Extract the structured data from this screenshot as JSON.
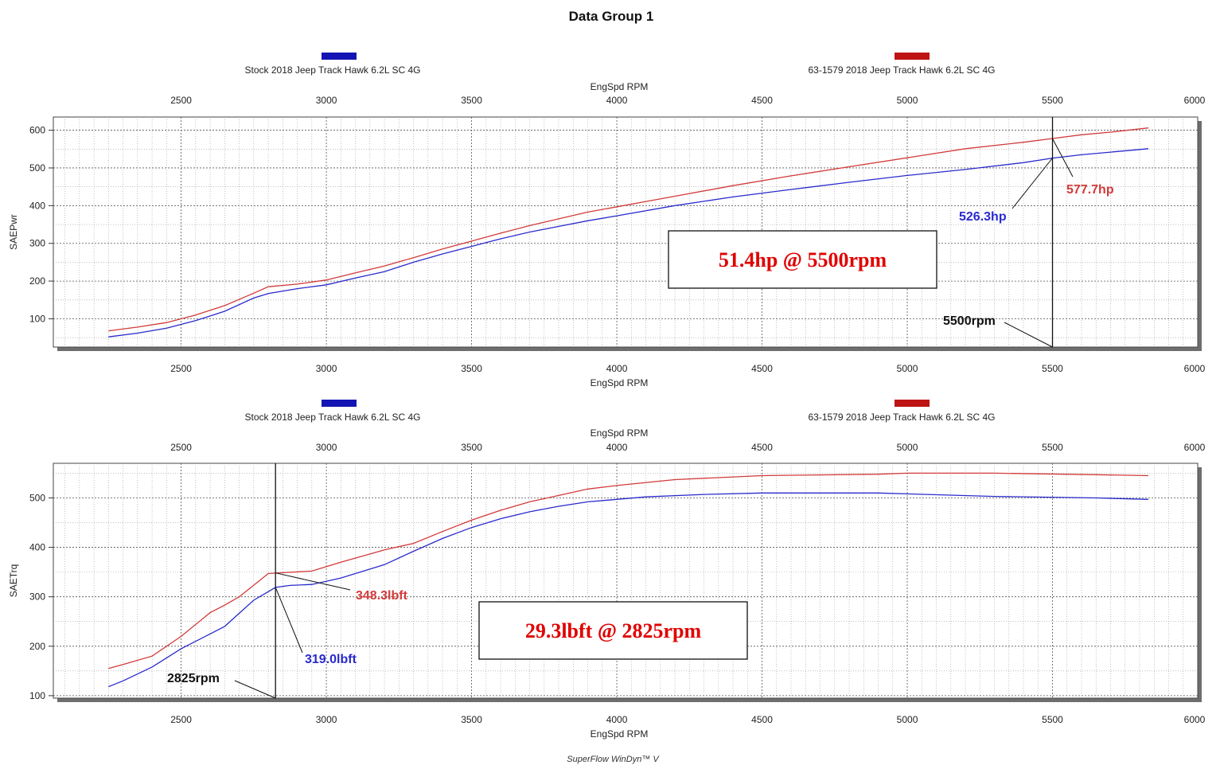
{
  "title": "Data Group 1",
  "footer": "SuperFlow WinDyn™ V",
  "colors": {
    "stock": "#2a2acd",
    "mod": "#d23a3a",
    "legend_stock": "#1414b4",
    "legend_mod": "#be1414",
    "box_text": "#e00000"
  },
  "chart_data": [
    {
      "type": "line",
      "xlabel": "EngSpd RPM",
      "ylabel": "SAEPwr",
      "xticks": [
        2500,
        3000,
        3500,
        4000,
        4500,
        5000,
        5500,
        6000
      ],
      "yticks": [
        100,
        200,
        300,
        400,
        500,
        600
      ],
      "xlim": [
        2060,
        6000
      ],
      "ylim": [
        25,
        635
      ],
      "grid": true,
      "legend": "top",
      "series": [
        {
          "name": "Stock 2018 Jeep Track Hawk 6.2L SC 4G",
          "color": "stock",
          "x": [
            2250,
            2350,
            2450,
            2550,
            2650,
            2750,
            2800,
            2900,
            3000,
            3100,
            3200,
            3300,
            3400,
            3500,
            3600,
            3700,
            3800,
            3900,
            4000,
            4200,
            4400,
            4600,
            4800,
            5000,
            5200,
            5400,
            5500,
            5600,
            5700,
            5830
          ],
          "y": [
            52,
            62,
            75,
            95,
            120,
            155,
            167,
            180,
            190,
            208,
            225,
            250,
            272,
            292,
            312,
            330,
            345,
            360,
            373,
            400,
            423,
            443,
            462,
            480,
            496,
            514,
            526,
            535,
            542,
            551
          ]
        },
        {
          "name": "63-1579 2018 Jeep Track Hawk 6.2L SC 4G",
          "color": "mod",
          "x": [
            2250,
            2350,
            2450,
            2550,
            2650,
            2750,
            2800,
            2900,
            3000,
            3100,
            3200,
            3300,
            3400,
            3500,
            3600,
            3700,
            3800,
            3900,
            4000,
            4200,
            4400,
            4600,
            4800,
            5000,
            5200,
            5400,
            5500,
            5600,
            5700,
            5830
          ],
          "y": [
            68,
            78,
            90,
            110,
            135,
            168,
            185,
            192,
            203,
            222,
            240,
            262,
            285,
            306,
            327,
            347,
            365,
            383,
            397,
            425,
            453,
            479,
            503,
            527,
            551,
            568,
            578,
            588,
            595,
            606
          ]
        }
      ],
      "annotations": {
        "vline_x": 5500,
        "vline_label": "5500rpm",
        "stock_label": "526.3hp",
        "mod_label": "577.7hp",
        "stock_at": 526.3,
        "mod_at": 577.7,
        "box": "51.4hp @ 5500rpm"
      }
    },
    {
      "type": "line",
      "xlabel": "EngSpd RPM",
      "ylabel": "SAETrq",
      "xticks": [
        2500,
        3000,
        3500,
        4000,
        4500,
        5000,
        5500,
        6000
      ],
      "yticks": [
        100,
        200,
        300,
        400,
        500
      ],
      "xlim": [
        2060,
        6000
      ],
      "ylim": [
        95,
        570
      ],
      "grid": true,
      "legend": "top",
      "series": [
        {
          "name": "Stock 2018 Jeep Track Hawk 6.2L SC 4G",
          "color": "stock",
          "x": [
            2250,
            2300,
            2400,
            2500,
            2600,
            2650,
            2750,
            2825,
            2875,
            2950,
            3050,
            3200,
            3300,
            3400,
            3500,
            3600,
            3700,
            3800,
            3900,
            4000,
            4100,
            4300,
            4500,
            4900,
            5300,
            5650,
            5830
          ],
          "y": [
            118,
            130,
            158,
            195,
            225,
            240,
            293,
            319,
            323,
            325,
            338,
            365,
            392,
            418,
            440,
            458,
            472,
            483,
            492,
            497,
            502,
            507,
            510,
            510,
            503,
            500,
            497
          ]
        },
        {
          "name": "63-1579 2018 Jeep Track Hawk 6.2L SC 4G",
          "color": "mod",
          "x": [
            2250,
            2300,
            2400,
            2500,
            2600,
            2650,
            2700,
            2800,
            2825,
            2950,
            3050,
            3200,
            3300,
            3400,
            3500,
            3600,
            3700,
            3800,
            3900,
            4000,
            4200,
            4500,
            4900,
            5000,
            5300,
            5650,
            5830
          ],
          "y": [
            155,
            163,
            180,
            220,
            268,
            283,
            300,
            347,
            348,
            352,
            370,
            395,
            408,
            432,
            455,
            475,
            492,
            505,
            518,
            525,
            537,
            545,
            548,
            550,
            550,
            547,
            545
          ]
        }
      ],
      "annotations": {
        "vline_x": 2825,
        "vline_label": "2825rpm",
        "stock_label": "319.0lbft",
        "mod_label": "348.3lbft",
        "stock_at": 319.0,
        "mod_at": 348.3,
        "box": "29.3lbft @ 2825rpm"
      }
    }
  ]
}
